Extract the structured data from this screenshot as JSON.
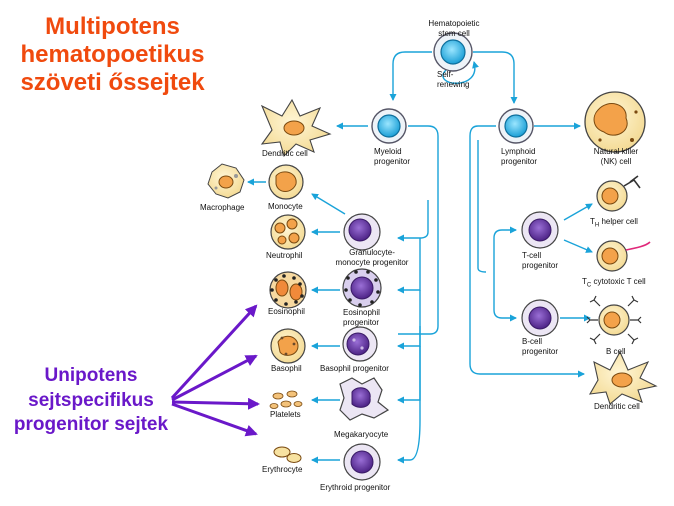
{
  "title_multipotent": [
    "Multipotens",
    "hematopoetikus",
    "szöveti őssejtek"
  ],
  "title_unipotent": [
    "Unipotens",
    "sejtspecifikus",
    "progenitor sejtek"
  ],
  "colors": {
    "title_orange": "#f04a0e",
    "title_purple": "#6a18c9",
    "arrow_blue": "#1aa3d9",
    "stem_fill": "#2ab6ea",
    "progenitor_purple": "#6c3fa8",
    "cell_cream": "#f7e2a1",
    "nucleus_orange": "#f3a24a",
    "magenta_receptor": "#e0287a"
  },
  "labels": {
    "stem_cell": [
      "Hematopoietic",
      "stem cell"
    ],
    "self_renewing": [
      "Self-",
      "renewing"
    ],
    "myeloid_progenitor": [
      "Myeloid",
      "progenitor"
    ],
    "lymphoid_progenitor": [
      "Lymphoid",
      "progenitor"
    ],
    "dendritic_cell_top": "Dendritic cell",
    "nk_cell": [
      "Natural killer",
      "(NK) cell"
    ],
    "macrophage": "Macrophage",
    "monocyte": "Monocyte",
    "neutrophil": "Neutrophil",
    "gm_progenitor": [
      "Granulocyte-",
      "monocyte progenitor"
    ],
    "eosinophil": "Eosinophil",
    "eosinophil_progenitor": [
      "Eosinophil",
      "progenitor"
    ],
    "basophil": "Basophil",
    "basophil_progenitor": "Basophil progenitor",
    "platelets": "Platelets",
    "megakaryocyte": "Megakaryocyte",
    "erythrocyte": "Erythrocyte",
    "erythroid_progenitor": "Erythroid progenitor",
    "t_cell_progenitor": [
      "T-cell",
      "progenitor"
    ],
    "th_helper_prefix": "T",
    "th_helper_sub": "H",
    "th_helper_suffix": " helper cell",
    "tc_prefix": "T",
    "tc_sub": "C",
    "tc_suffix": " cytotoxic T cell",
    "b_cell_progenitor": [
      "B-cell",
      "progenitor"
    ],
    "b_cell": "B cell",
    "dendritic_cell_bottom": "Dendritic cell"
  }
}
